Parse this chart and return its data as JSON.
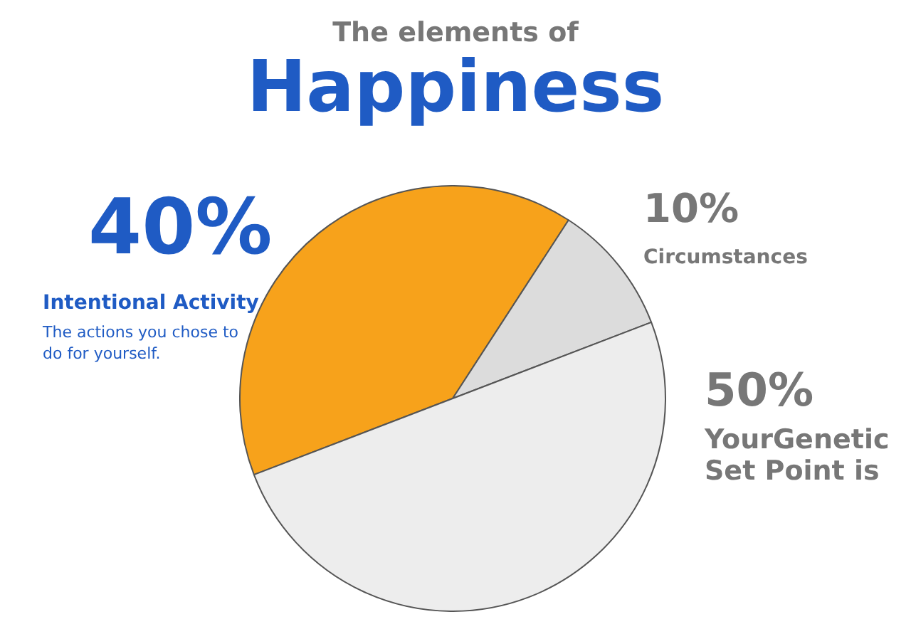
{
  "chart_data": {
    "type": "pie",
    "title": "The elements of",
    "subtitle": "Happiness",
    "categories": [
      "Intentional Activity",
      "Circumstances",
      "YourGenetic Set Point is"
    ],
    "values": [
      40,
      10,
      50
    ],
    "colors": [
      "#f7a21b",
      "#dcdcdc",
      "#ededed"
    ],
    "value_labels": [
      "40%",
      "10%",
      "50%"
    ],
    "annotations": [
      "The actions you chose to do for yourself."
    ],
    "legend": false
  }
}
